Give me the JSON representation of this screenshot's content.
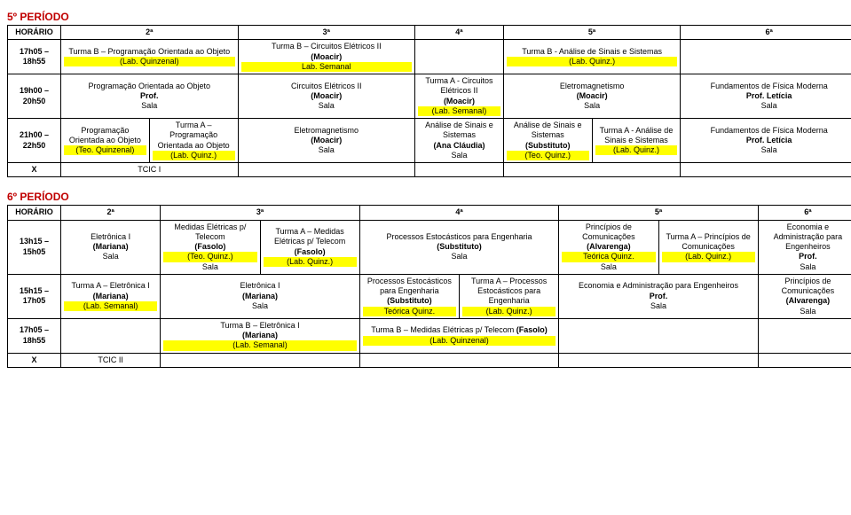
{
  "periodo5": {
    "title": "5º PERÍODO",
    "headers": {
      "horario": "HORÁRIO",
      "d2": "2ª",
      "d3": "3ª",
      "d4": "4ª",
      "d5": "5ª",
      "d6": "6ª"
    },
    "rows": {
      "r1": {
        "time": "17h05 – 18h55",
        "c2a": "Turma B – Programação Orientada ao Objeto",
        "c2b": "(Lab. Quinzenal)",
        "c3a": "Turma B – Circuitos Elétricos II",
        "c3b": "(Moacir)",
        "c3c": "Lab. Semanal",
        "c5a": "Turma B - Análise de Sinais e Sistemas",
        "c5b": "(Lab. Quinz.)"
      },
      "r2": {
        "time": "19h00 – 20h50",
        "c2a": "Programação Orientada ao Objeto",
        "c2b": "Prof.",
        "c2c": "Sala",
        "c3a": "Circuitos Elétricos II",
        "c3b": "(Moacir)",
        "c3c": "Sala",
        "c4a": "Turma A - Circuitos Elétricos II",
        "c4b": "(Moacir)",
        "c4c": "(Lab. Semanal)",
        "c5a": "Eletromagnetismo",
        "c5b": "(Moacir)",
        "c5c": "Sala",
        "c6a": "Fundamentos de Física Moderna",
        "c6b": "Prof. Letícia",
        "c6c": "Sala"
      },
      "r3": {
        "time": "21h00 – 22h50",
        "c2l_a": "Programação Orientada ao Objeto",
        "c2l_b": "(Teo. Quinzenal)",
        "c2r_a": "Turma A – Programação Orientada ao Objeto",
        "c2r_b": "(Lab. Quinz.)",
        "c3a": "Eletromagnetismo",
        "c3b": "(Moacir)",
        "c3c": "Sala",
        "c4a": "Análise de Sinais e Sistemas",
        "c4b": "(Ana Cláudia)",
        "c4c": "Sala",
        "c5l_a": "Análise de Sinais e Sistemas",
        "c5l_b": "(Substituto)",
        "c5l_c": "(Teo. Quinz.)",
        "c5r_a": "Turma A - Análise de Sinais e Sistemas",
        "c5r_b": "(Lab. Quinz.)",
        "c6a": "Fundamentos de Física Moderna",
        "c6b": "Prof. Letícia",
        "c6c": "Sala"
      },
      "r4": {
        "time": "X",
        "c2": "TCIC I"
      }
    }
  },
  "periodo6": {
    "title": "6º PERÍODO",
    "headers": {
      "horario": "HORÁRIO",
      "d2": "2ª",
      "d3": "3ª",
      "d4": "4ª",
      "d5": "5ª",
      "d6": "6ª"
    },
    "rows": {
      "r1": {
        "time": "13h15 – 15h05",
        "c2a": "Eletrônica I",
        "c2b": "(Mariana)",
        "c2c": "Sala",
        "c3l_a": "Medidas Elétricas p/ Telecom",
        "c3l_b": "(Fasolo)",
        "c3l_c": "(Teo. Quinz.)",
        "c3l_d": "Sala",
        "c3r_a": "Turma A – Medidas Elétricas p/ Telecom",
        "c3r_b": "(Fasolo)",
        "c3r_c": "(Lab. Quinz.)",
        "c4a": "Processos Estocásticos para Engenharia",
        "c4b": "(Substituto)",
        "c4c": "Sala",
        "c5l_a": "Princípios de Comunicações",
        "c5l_b": "(Alvarenga)",
        "c5l_c": "Teórica Quinz.",
        "c5l_d": "Sala",
        "c5r_a": "Turma A – Princípios de Comunicações",
        "c5r_b": "(Lab. Quinz.)",
        "c6a": "Economia e Administração para Engenheiros",
        "c6b": "Prof.",
        "c6c": "Sala"
      },
      "r2": {
        "time": "15h15 – 17h05",
        "c2a": "Turma A – Eletrônica I",
        "c2b": "(Mariana)",
        "c2c": "(Lab. Semanal)",
        "c3a": "Eletrônica I",
        "c3b": "(Mariana)",
        "c3c": "Sala",
        "c4l_a": "Processos Estocásticos para Engenharia",
        "c4l_b": "(Substituto)",
        "c4l_c": "Teórica Quinz.",
        "c4r_a": "Turma A – Processos Estocásticos para Engenharia",
        "c4r_b": "(Lab. Quinz.)",
        "c5a": "Economia e Administração para Engenheiros",
        "c5b": "Prof.",
        "c5c": "Sala",
        "c6a": "Princípios de Comunicações",
        "c6b": "(Alvarenga)",
        "c6c": "Sala"
      },
      "r3": {
        "time": "17h05 – 18h55",
        "c3a": "Turma B – Eletrônica I",
        "c3b": "(Mariana)",
        "c3c": "(Lab. Semanal)",
        "c4a": "Turma B – Medidas Elétricas p/ Telecom ",
        "c4b": "(Fasolo)",
        "c4c": "(Lab. Quinzenal)"
      },
      "r4": {
        "time": "X",
        "c2": "TCIC II"
      }
    }
  }
}
